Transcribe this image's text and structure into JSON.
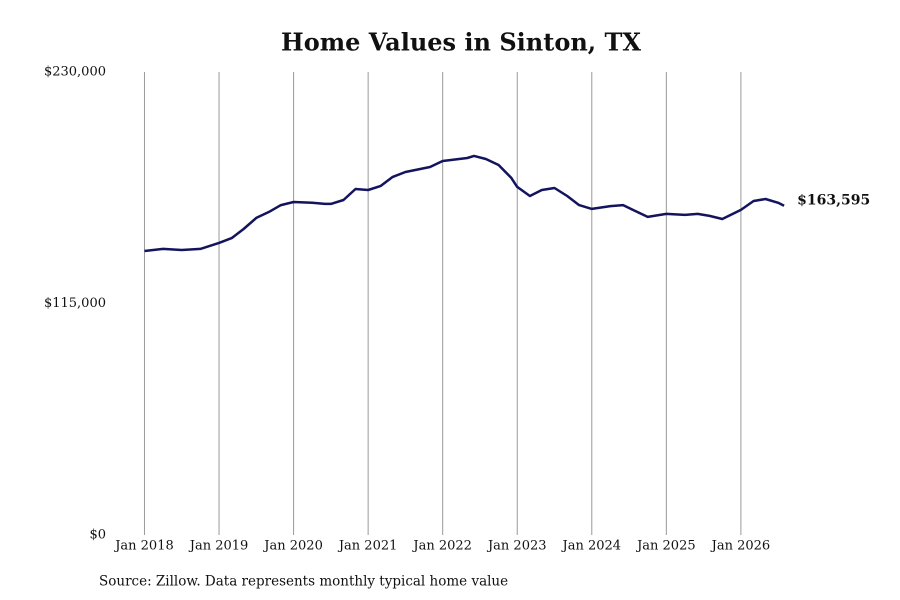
{
  "chart_data": {
    "type": "line",
    "title": "Home Values in Sinton, TX",
    "source": "Source: Zillow. Data represents monthly typical home value",
    "color": "#14145e",
    "x": [
      2018.0,
      2018.25,
      2018.5,
      2018.75,
      2019.0,
      2019.17,
      2019.33,
      2019.5,
      2019.67,
      2019.83,
      2020.0,
      2020.25,
      2020.42,
      2020.5,
      2020.67,
      2020.83,
      2021.0,
      2021.17,
      2021.33,
      2021.5,
      2021.83,
      2022.0,
      2022.33,
      2022.42,
      2022.58,
      2022.75,
      2022.92,
      2023.0,
      2023.17,
      2023.33,
      2023.5,
      2023.67,
      2023.83,
      2024.0,
      2024.25,
      2024.42,
      2024.58,
      2024.75,
      2025.0,
      2025.25,
      2025.42,
      2025.58,
      2025.75,
      2026.0,
      2026.17,
      2026.33,
      2026.5,
      2026.58
    ],
    "values": [
      141100,
      142100,
      141600,
      142100,
      145100,
      147500,
      152000,
      157500,
      160500,
      163900,
      165400,
      165000,
      164500,
      164500,
      166400,
      171900,
      171400,
      173400,
      177900,
      180300,
      182800,
      185800,
      187300,
      188300,
      186800,
      183800,
      177400,
      172900,
      168400,
      171400,
      172400,
      168400,
      163900,
      162000,
      163400,
      163900,
      161000,
      158000,
      159500,
      159000,
      159500,
      158500,
      157000,
      161500,
      165900,
      166900,
      165000,
      163595
    ],
    "value_labels": [
      null,
      null,
      null,
      null,
      null,
      null,
      null,
      null,
      null,
      null,
      null,
      null,
      null,
      null,
      null,
      null,
      null,
      null,
      null,
      null,
      null,
      null,
      null,
      null,
      null,
      null,
      null,
      null,
      null,
      null,
      null,
      null,
      null,
      null,
      null,
      null,
      null,
      null,
      null,
      null,
      null,
      null,
      null,
      null,
      null,
      null,
      null,
      "$163,595"
    ],
    "xlim": [
      2017.94,
      2026.9
    ],
    "xticks": [
      {
        "value": 2018,
        "label": "Jan 2018"
      },
      {
        "value": 2019,
        "label": "Jan 2019"
      },
      {
        "value": 2020,
        "label": "Jan 2020"
      },
      {
        "value": 2021,
        "label": "Jan 2021"
      },
      {
        "value": 2022,
        "label": "Jan 2022"
      },
      {
        "value": 2023,
        "label": "Jan 2023"
      },
      {
        "value": 2024,
        "label": "Jan 2024"
      },
      {
        "value": 2025,
        "label": "Jan 2025"
      },
      {
        "value": 2026,
        "label": "Jan 2026"
      }
    ],
    "ylim": [
      0,
      230000
    ],
    "yticks": [
      {
        "value": 0,
        "label": "$0"
      },
      {
        "value": 115000,
        "label": "$115,000"
      },
      {
        "value": 230000,
        "label": "$230,000"
      }
    ],
    "grid": "x"
  }
}
